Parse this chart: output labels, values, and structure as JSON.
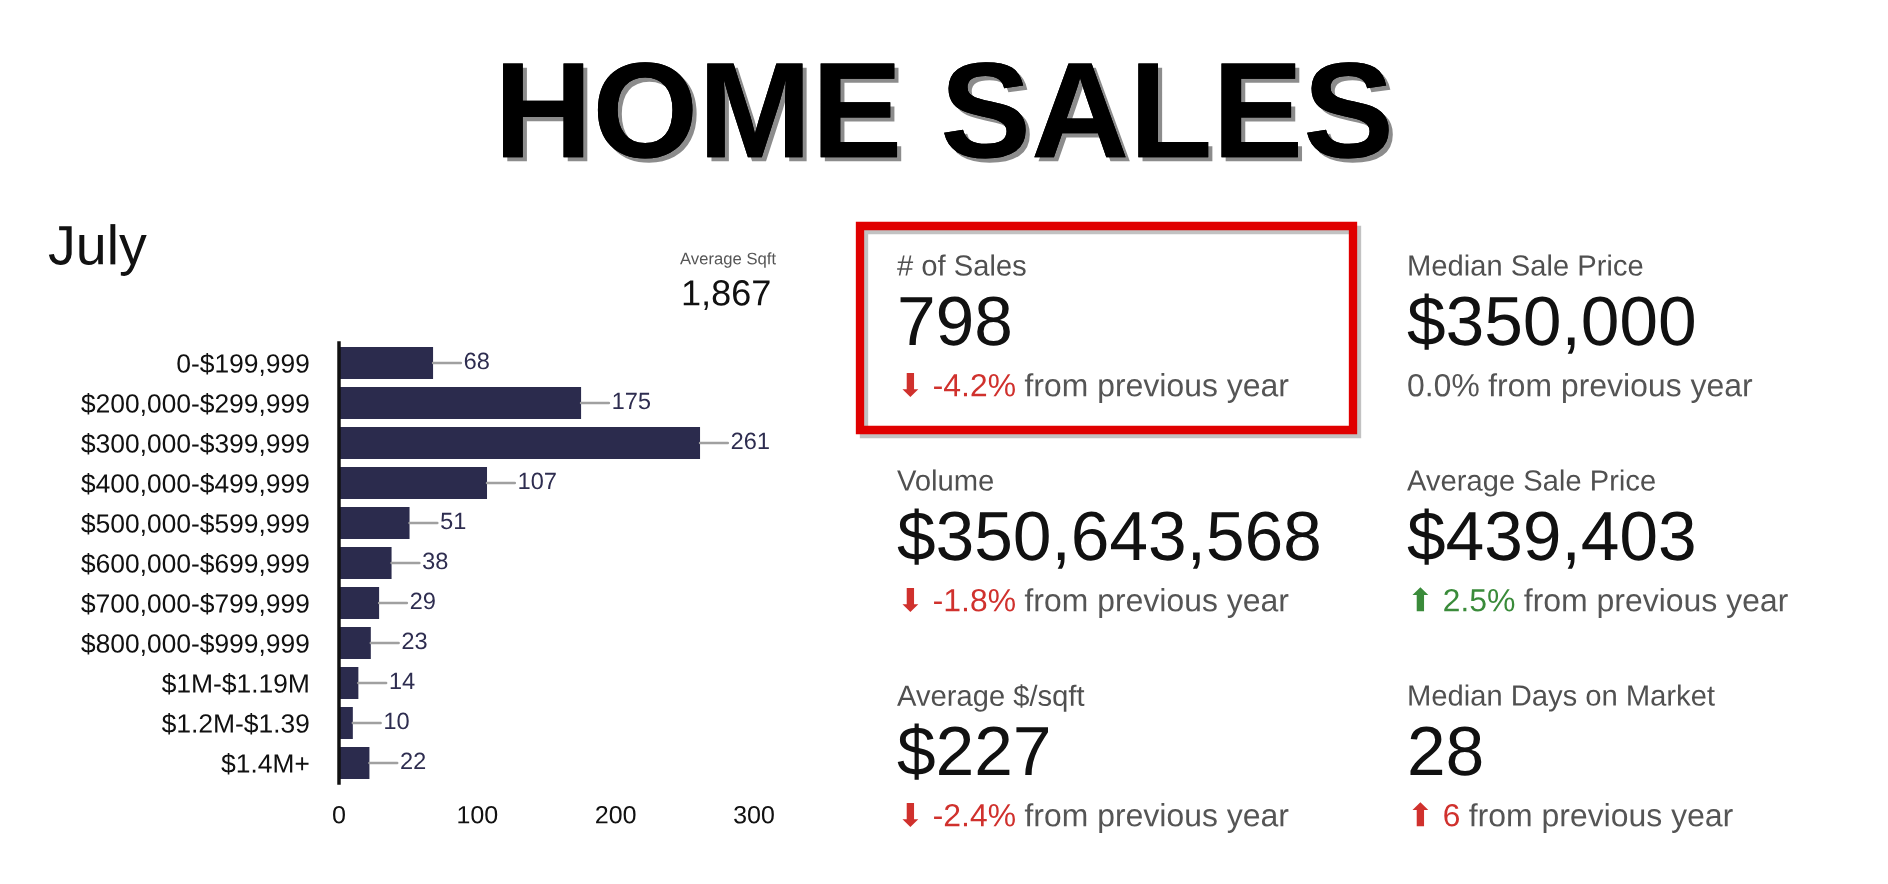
{
  "chart_data": [
    {
      "type": "bar",
      "orientation": "horizontal",
      "title": "HOME SALES",
      "subtitle": "July",
      "categories": [
        "0-$199,999",
        "$200,000-$299,999",
        "$300,000-$399,999",
        "$400,000-$499,999",
        "$500,000-$599,999",
        "$600,000-$699,999",
        "$700,000-$799,999",
        "$800,000-$999,999",
        "$1M-$1.19M",
        "$1.2M-$1.39",
        "$1.4M+"
      ],
      "values": [
        68,
        175,
        261,
        107,
        51,
        38,
        29,
        23,
        14,
        10,
        22
      ],
      "color": "#2b2b4d",
      "xlim": [
        0,
        300
      ],
      "xticks": [
        0,
        100,
        200,
        300
      ],
      "data_labels": true,
      "annotations": [
        "Average Sqft",
        "1,867"
      ]
    },
    {
      "type": "other",
      "categories": [
        "# of Sales",
        "Median Sale Price",
        "Volume",
        "Average Sale Price",
        "Average $/sqft",
        "Median Days on Market"
      ],
      "value_labels": [
        "798",
        "$350,000",
        "$350,643,568",
        "$439,403",
        "$227",
        "28"
      ],
      "annotations": [
        "⬇ -4.2%",
        "from previous year",
        "0.0%",
        "from previous year",
        "⬇ -1.8%",
        "from previous year",
        "⬆ 2.5%",
        "from previous year",
        "⬇ -2.4%",
        "from previous year",
        "⬆ 6",
        "from previous year"
      ],
      "colors": [
        "#d0312d",
        "#555555",
        "#d0312d",
        "#3a8b3a",
        "#d0312d",
        "#d0312d"
      ]
    }
  ]
}
